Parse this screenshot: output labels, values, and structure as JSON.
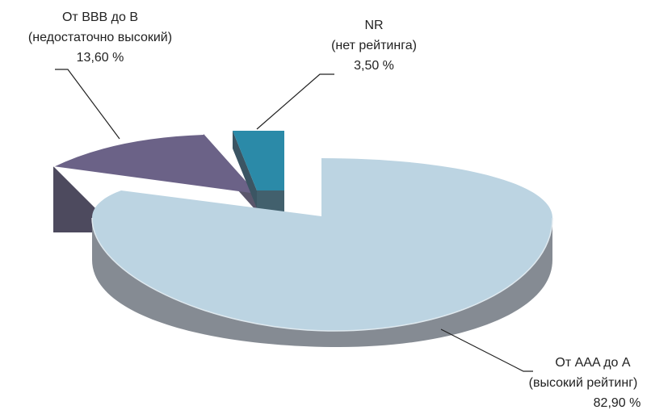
{
  "chart_data": {
    "type": "pie",
    "style": "3d-exploded",
    "categories": [
      "От AAA до A (высокий рейтинг)",
      "От BBB до B (недостаточно высокий)",
      "NR (нет рейтинга)"
    ],
    "values": [
      82.9,
      13.6,
      3.5
    ],
    "slices": [
      {
        "label_lines": [
          "От AAA до A",
          "(высокий рейтинг)"
        ],
        "value_text": "82,90 %",
        "value": 82.9,
        "top_color": "#bcd4e2",
        "side_color": "#858b93"
      },
      {
        "label_lines": [
          "От BBB до B",
          "(недостаточно высокий)"
        ],
        "value_text": "13,60 %",
        "value": 13.6,
        "top_color": "#6b6287",
        "side_color": "#4a4658"
      },
      {
        "label_lines": [
          "NR",
          "(нет рейтинга)"
        ],
        "value_text": "3,50 %",
        "value": 3.5,
        "top_color": "#2b8aa8",
        "side_color": "#42606d"
      }
    ],
    "legend": "none"
  }
}
